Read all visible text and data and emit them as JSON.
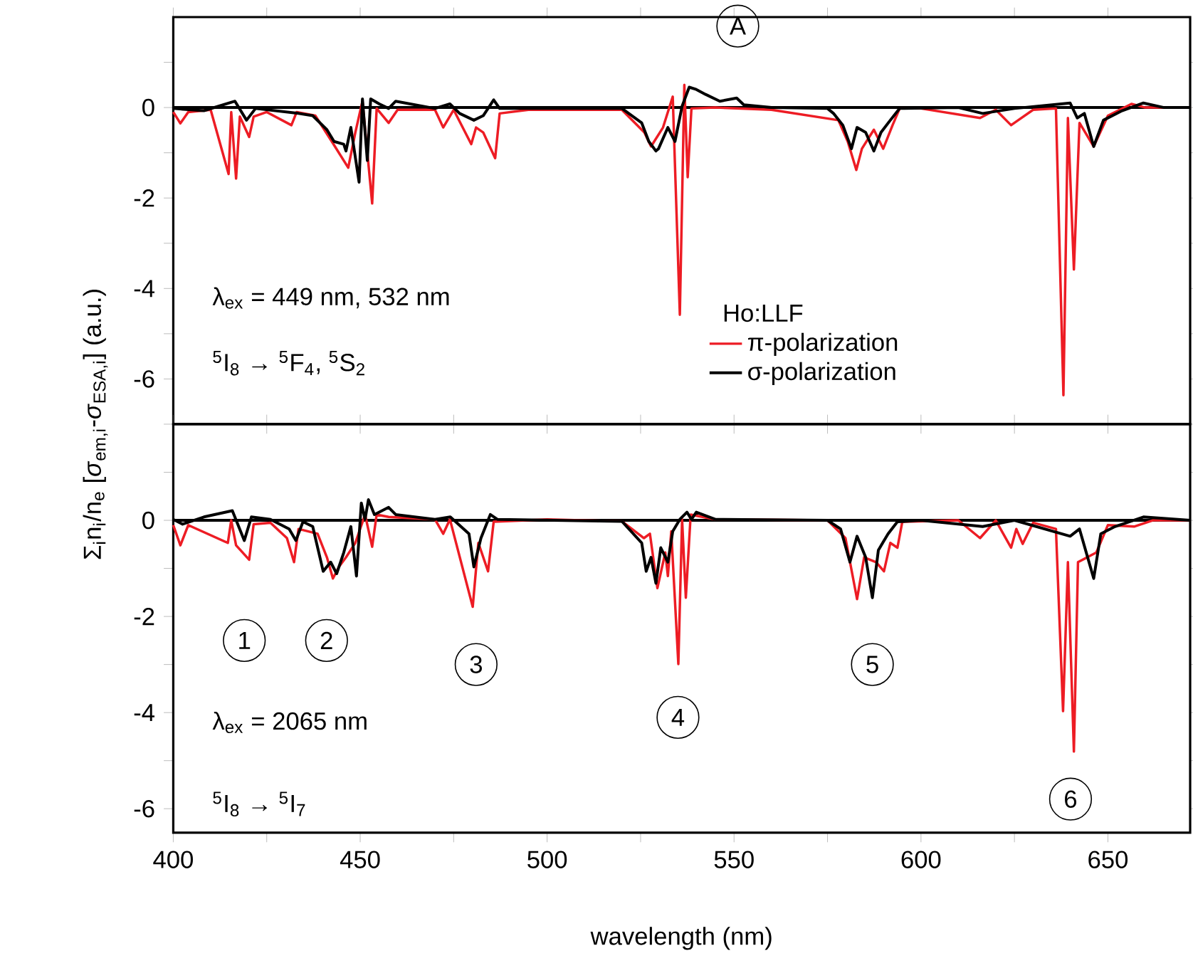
{
  "chart_data": [
    {
      "type": "line",
      "xlim": [
        400,
        672
      ],
      "ylim": [
        -7,
        2
      ],
      "xticks": [
        400,
        {
          "value": 425,
          "label": null
        },
        450,
        {
          "value": 475,
          "label": null
        },
        500,
        {
          "value": 525,
          "label": null
        },
        550,
        {
          "value": 575,
          "label": null
        },
        600,
        {
          "value": 625,
          "label": null
        },
        650
      ],
      "yticks": [
        {
          "value": -7,
          "label": null
        },
        -6,
        {
          "value": -5,
          "label": null
        },
        -4,
        {
          "value": -3,
          "label": null
        },
        -2,
        {
          "value": -1,
          "label": null
        },
        0,
        {
          "value": 1,
          "label": null
        }
      ],
      "tick_labels": "y",
      "legend": "bottom right",
      "legend_title": "Ho:LLF",
      "ref_lines": [
        {
          "axis": "y",
          "value": 0,
          "color": "#000000"
        }
      ],
      "annotations": [
        "λ$_{ex}$ = 449 nm, 532 nm",
        "$^{5}$I$_{8}$ → $^{5}$F$_{4}$, $^{5}$S$_{2}$",
        {
          "text": "A",
          "x": 551,
          "y": 1.8
        }
      ],
      "series": [
        {
          "name": "π-polarization",
          "color": "#ed1c24",
          "x": [
            400,
            401.9,
            404,
            410,
            414.8,
            415.5,
            416.8,
            417.8,
            420.3,
            421.5,
            425,
            431.6,
            433,
            438,
            442.4,
            446.8,
            448.7,
            450.6,
            453.2,
            454.4,
            457.6,
            460,
            470,
            472.2,
            475,
            479.7,
            481,
            482.9,
            486.1,
            487.3,
            495,
            520,
            526,
            527.8,
            531,
            533.6,
            535.5,
            536.7,
            537.6,
            538.6,
            545,
            560,
            577.9,
            580.4,
            582.7,
            584.2,
            587.4,
            589.9,
            592.4,
            594.3,
            600,
            615.8,
            620,
            624.1,
            626,
            630,
            636.1,
            638.1,
            639.3,
            640.9,
            642.4,
            646.2,
            650,
            656.3,
            660,
            672
          ],
          "values": [
            -0.1,
            -0.35,
            -0.1,
            -0.05,
            -1.47,
            -0.1,
            -1.57,
            -0.2,
            -0.65,
            -0.2,
            -0.1,
            -0.39,
            -0.1,
            -0.18,
            -0.75,
            -1.33,
            -0.55,
            0.14,
            -2.12,
            -0.02,
            -0.34,
            -0.05,
            -0.05,
            -0.44,
            -0.05,
            -0.81,
            -0.44,
            -0.55,
            -1.12,
            -0.13,
            -0.05,
            -0.05,
            -0.55,
            -0.86,
            -0.44,
            0.24,
            -4.58,
            0.5,
            -1.54,
            -0.02,
            0,
            -0.05,
            -0.28,
            -0.75,
            -1.38,
            -0.91,
            -0.49,
            -0.91,
            -0.39,
            -0.02,
            -0.02,
            -0.23,
            -0.05,
            -0.39,
            -0.28,
            -0.05,
            -0.02,
            -6.36,
            -0.23,
            -3.58,
            -0.34,
            -0.86,
            -0.18,
            0.08,
            0,
            0
          ]
        },
        {
          "name": "σ-polarization",
          "color": "#000000",
          "x": [
            400,
            408.2,
            416.5,
            419.6,
            422,
            433.5,
            437.3,
            441.1,
            443,
            445.6,
            446.2,
            447.5,
            449.7,
            450.6,
            451.9,
            452.8,
            455.1,
            457.6,
            459.5,
            470,
            474,
            476.6,
            480.4,
            482.9,
            485.7,
            487.3,
            520,
            525.3,
            527.2,
            529.1,
            529.8,
            532.3,
            534.2,
            536.1,
            538,
            539.9,
            542.4,
            546.2,
            550.7,
            552.6,
            560,
            575,
            576.6,
            579.1,
            581.4,
            582.9,
            585.2,
            587.4,
            589.3,
            591.8,
            594.3,
            610,
            616.5,
            625,
            639.9,
            641.8,
            643.7,
            646.2,
            648.8,
            653.8,
            659.5,
            665,
            672
          ],
          "values": [
            -0.02,
            -0.07,
            0.14,
            -0.28,
            -0.02,
            -0.13,
            -0.18,
            -0.49,
            -0.75,
            -0.81,
            -0.96,
            -0.44,
            -1.65,
            0.19,
            -1.17,
            0.19,
            0.08,
            -0.02,
            0.14,
            -0.02,
            0.08,
            -0.13,
            -0.28,
            -0.18,
            0.17,
            -0.02,
            -0.02,
            -0.34,
            -0.75,
            -0.96,
            -0.91,
            -0.44,
            -0.75,
            0.03,
            0.45,
            0.4,
            0.29,
            0.14,
            0.21,
            0.06,
            0,
            -0.02,
            -0.13,
            -0.39,
            -0.91,
            -0.44,
            -0.55,
            -0.96,
            -0.55,
            -0.28,
            -0.02,
            0,
            -0.13,
            -0.02,
            0.1,
            -0.23,
            -0.13,
            -0.86,
            -0.28,
            -0.07,
            0.1,
            0,
            0
          ]
        }
      ]
    },
    {
      "type": "line",
      "xlim": [
        400,
        672
      ],
      "ylim": [
        -6.5,
        2
      ],
      "xticks": [
        400,
        {
          "value": 425,
          "label": null
        },
        450,
        {
          "value": 475,
          "label": null
        },
        500,
        {
          "value": 525,
          "label": null
        },
        550,
        {
          "value": 575,
          "label": null
        },
        600,
        {
          "value": 625,
          "label": null
        },
        650
      ],
      "yticks": [
        -6,
        {
          "value": -5,
          "label": null
        },
        -4,
        {
          "value": -3,
          "label": null
        },
        -2,
        {
          "value": -1,
          "label": null
        },
        0,
        {
          "value": 1,
          "label": null
        }
      ],
      "xlabel": "wavelength (nm)",
      "ylabel": "Σ$_{i}$n$_{i}$/n$_{e}$ [*σ*$_{em,i}$-*σ*$_{ESA,i}$] (a.u.)",
      "ref_lines": [
        {
          "axis": "y",
          "value": 0,
          "color": "#000000"
        }
      ],
      "annotations": [
        "λ$_{ex}$ = 2065 nm",
        "$^{5}$I$_{8}$ → $^{5}$I$_{7}$",
        {
          "text": "1",
          "x": 419,
          "y": -2.5
        },
        {
          "text": "2",
          "x": 441,
          "y": -2.5
        },
        {
          "text": "3",
          "x": 481,
          "y": -3
        },
        {
          "text": "4",
          "x": 535,
          "y": -4.1
        },
        {
          "text": "5",
          "x": 587,
          "y": -3
        },
        {
          "text": "6",
          "x": 640,
          "y": -5.8
        }
      ],
      "series": [
        {
          "color": "#ed1c24",
          "x": [
            400,
            401.9,
            404,
            414.6,
            415.5,
            416.8,
            420.3,
            421.5,
            426,
            430.4,
            432.3,
            433.5,
            438.6,
            441.1,
            442.7,
            444.3,
            446.2,
            448.7,
            451.3,
            453.2,
            454.4,
            457.6,
            470,
            472.2,
            474,
            480.1,
            481.6,
            484.2,
            485.7,
            500,
            520,
            525.9,
            527.5,
            529.5,
            531.6,
            532.3,
            533.2,
            535.1,
            536.1,
            537.1,
            538.4,
            545,
            575,
            579.8,
            582.9,
            584.8,
            588,
            590.1,
            591.8,
            593.7,
            595,
            610,
            615.8,
            620,
            624.1,
            625.5,
            627.2,
            630,
            636.1,
            638,
            639.3,
            640.9,
            642,
            646.9,
            650,
            657,
            662,
            672
          ],
          "values": [
            -0.1,
            -0.52,
            -0.1,
            -0.47,
            0,
            -0.52,
            -0.82,
            -0.08,
            -0.05,
            -0.37,
            -0.87,
            -0.18,
            -0.28,
            -0.77,
            -1.21,
            -0.97,
            -0.77,
            -0.47,
            0.12,
            -0.55,
            0.12,
            0.07,
            0.02,
            -0.28,
            0.02,
            -1.8,
            -0.47,
            -1.06,
            -0.03,
            0.02,
            -0.02,
            -0.37,
            -0.28,
            -1.41,
            -0.67,
            -1.16,
            -0.23,
            -2.99,
            0.02,
            -1.61,
            0.12,
            0.02,
            0,
            -0.37,
            -1.64,
            -0.77,
            -0.87,
            -1.06,
            -0.47,
            -0.57,
            -0.03,
            0,
            -0.37,
            0,
            -0.57,
            -0.18,
            -0.49,
            -0.05,
            -0.18,
            -3.97,
            -0.87,
            -4.81,
            -0.87,
            -0.67,
            -0.1,
            -0.13,
            0,
            0
          ]
        },
        {
          "color": "#000000",
          "x": [
            400,
            402.5,
            408.2,
            415.8,
            419,
            420.9,
            426,
            431,
            432.8,
            434.7,
            437.3,
            440.1,
            442.1,
            443.7,
            445.6,
            447.5,
            449,
            450.3,
            451.3,
            452.2,
            453.8,
            457.6,
            459.5,
            470,
            474.1,
            479.1,
            480.4,
            482.3,
            484.8,
            486.7,
            520,
            525.3,
            526.5,
            527.8,
            529.1,
            530.4,
            532.3,
            533.6,
            535.5,
            537.4,
            538.6,
            539.9,
            545,
            575,
            578.5,
            581,
            582.9,
            585.2,
            587,
            588.6,
            591.2,
            593.7,
            600,
            616.5,
            625,
            639.9,
            642.4,
            646.2,
            648.1,
            651.9,
            659.5,
            672
          ],
          "values": [
            0.02,
            -0.08,
            0.07,
            0.2,
            -0.42,
            0.07,
            0.02,
            -0.18,
            -0.42,
            -0.03,
            -0.13,
            -1.06,
            -0.87,
            -1.11,
            -0.67,
            -0.13,
            -1.16,
            0.36,
            0.02,
            0.43,
            0.12,
            0.27,
            0.12,
            0.02,
            0.07,
            -0.28,
            -0.97,
            -0.37,
            0.12,
            0.02,
            -0.02,
            -0.47,
            -1.06,
            -0.77,
            -1.31,
            -0.57,
            -0.87,
            -0.23,
            0.02,
            0.17,
            0.02,
            0.17,
            0.02,
            0,
            -0.18,
            -0.87,
            -0.33,
            -0.77,
            -1.61,
            -0.62,
            -0.28,
            -0.03,
            0,
            -0.13,
            0,
            -0.33,
            -0.18,
            -1.21,
            -0.28,
            -0.13,
            0.07,
            0
          ]
        }
      ]
    }
  ]
}
